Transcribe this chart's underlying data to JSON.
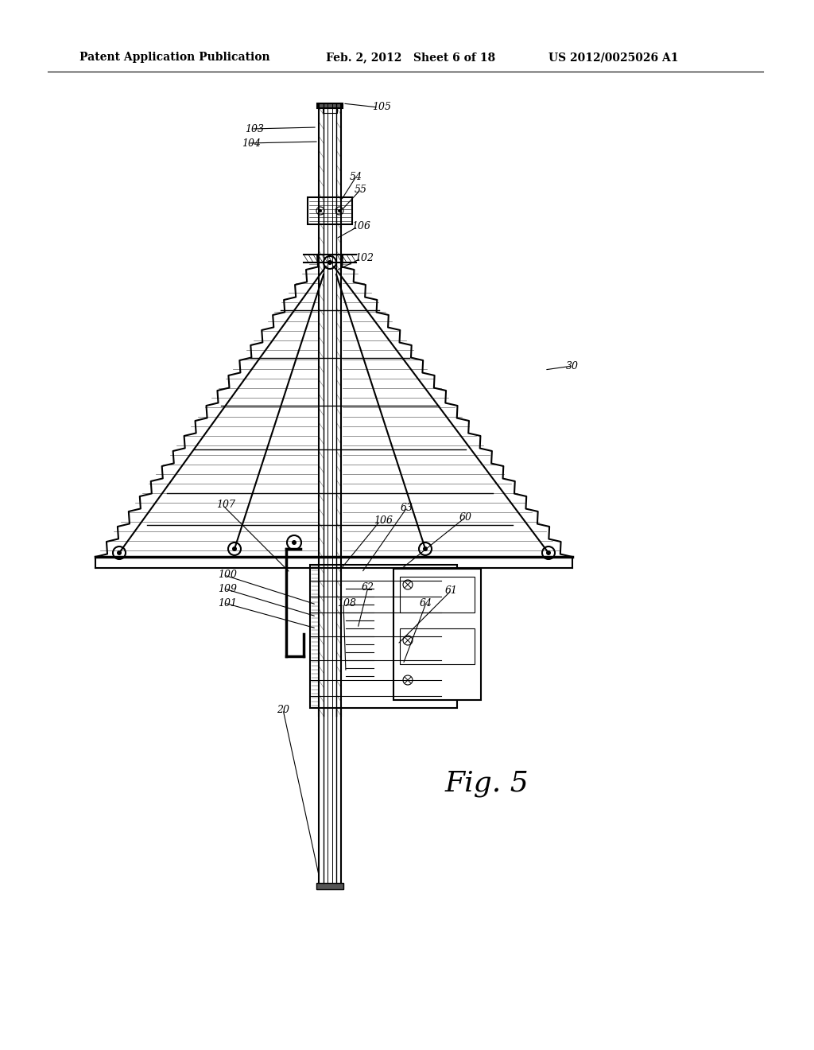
{
  "bg_color": "#ffffff",
  "header_left": "Patent Application Publication",
  "header_mid": "Feb. 2, 2012   Sheet 6 of 18",
  "header_right": "US 2012/0025026 A1",
  "figure_label": "Fig. 5"
}
